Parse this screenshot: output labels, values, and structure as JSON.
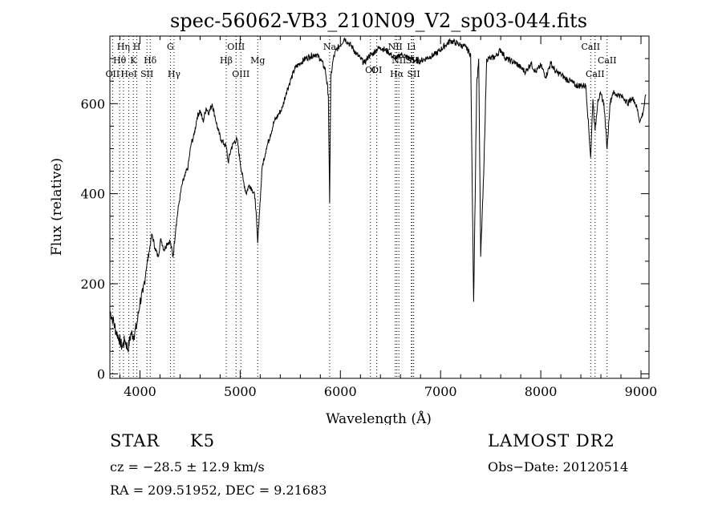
{
  "chart_data": {
    "type": "line",
    "title": "spec-56062-VB3_210N09_V2_sp03-044.fits",
    "xlabel": "Wavelength (Å)",
    "ylabel": "Flux (relative)",
    "xlim": [
      3700,
      9080
    ],
    "ylim": [
      -10,
      750
    ],
    "x_ticks": [
      4000,
      5000,
      6000,
      7000,
      8000,
      9000
    ],
    "y_ticks": [
      0,
      200,
      400,
      600
    ],
    "line_color": "#000000",
    "marker_color": "#000000",
    "series": [
      {
        "x": [
          3700,
          3730,
          3760,
          3790,
          3820,
          3850,
          3880,
          3910,
          3940,
          3970,
          4000,
          4030,
          4060,
          4090,
          4120,
          4150,
          4180,
          4210,
          4240,
          4270,
          4300,
          4330,
          4360,
          4390,
          4420,
          4450,
          4480,
          4510,
          4540,
          4570,
          4600,
          4630,
          4660,
          4690,
          4720,
          4750,
          4780,
          4810,
          4840,
          4861,
          4880,
          4910,
          4940,
          4970,
          5000,
          5030,
          5060,
          5090,
          5120,
          5150,
          5175,
          5190,
          5220,
          5260,
          5300,
          5340,
          5380,
          5420,
          5460,
          5500,
          5550,
          5600,
          5650,
          5700,
          5750,
          5800,
          5850,
          5880,
          5893,
          5905,
          5930,
          5960,
          6000,
          6040,
          6080,
          6120,
          6160,
          6200,
          6240,
          6280,
          6320,
          6360,
          6400,
          6440,
          6480,
          6520,
          6563,
          6600,
          6650,
          6700,
          6750,
          6800,
          6850,
          6900,
          6950,
          7000,
          7050,
          7100,
          7150,
          7200,
          7250,
          7300,
          7330,
          7360,
          7380,
          7400,
          7430,
          7460,
          7500,
          7550,
          7600,
          7650,
          7700,
          7750,
          7800,
          7850,
          7900,
          7950,
          8000,
          8050,
          8100,
          8150,
          8200,
          8250,
          8300,
          8350,
          8400,
          8450,
          8498,
          8520,
          8542,
          8570,
          8600,
          8630,
          8662,
          8690,
          8720,
          8750,
          8780,
          8810,
          8840,
          8870,
          8900,
          8930,
          8960,
          8990,
          9020,
          9050
        ],
        "y": [
          140,
          120,
          95,
          80,
          60,
          75,
          55,
          90,
          85,
          110,
          160,
          180,
          230,
          270,
          310,
          280,
          260,
          300,
          275,
          290,
          295,
          260,
          330,
          380,
          420,
          440,
          460,
          510,
          530,
          570,
          585,
          560,
          590,
          580,
          600,
          570,
          540,
          520,
          510,
          505,
          470,
          500,
          515,
          520,
          470,
          430,
          400,
          420,
          410,
          390,
          290,
          350,
          460,
          500,
          530,
          560,
          575,
          590,
          625,
          650,
          680,
          690,
          700,
          705,
          710,
          700,
          675,
          620,
          380,
          660,
          700,
          720,
          730,
          745,
          735,
          725,
          710,
          700,
          690,
          705,
          710,
          720,
          725,
          720,
          715,
          705,
          700,
          710,
          705,
          700,
          695,
          695,
          700,
          705,
          710,
          720,
          730,
          740,
          735,
          730,
          725,
          710,
          160,
          640,
          700,
          260,
          440,
          700,
          700,
          705,
          720,
          700,
          695,
          690,
          680,
          670,
          690,
          670,
          685,
          660,
          690,
          670,
          665,
          655,
          650,
          640,
          640,
          640,
          480,
          610,
          540,
          610,
          620,
          600,
          500,
          600,
          625,
          620,
          620,
          615,
          610,
          600,
          610,
          610,
          590,
          560,
          580,
          620
        ]
      }
    ],
    "line_markers": [
      {
        "label": "OII",
        "x": 3727,
        "row": 3
      },
      {
        "label": "Hη",
        "x": 3835,
        "row": 1
      },
      {
        "label": "Hθ",
        "x": 3797,
        "row": 2
      },
      {
        "label": "K",
        "x": 3934,
        "row": 2
      },
      {
        "label": "H",
        "x": 3969,
        "row": 1
      },
      {
        "label": "HeI",
        "x": 3889,
        "row": 3
      },
      {
        "label": "SII",
        "x": 4070,
        "row": 3
      },
      {
        "label": "Hδ",
        "x": 4102,
        "row": 2
      },
      {
        "label": "G",
        "x": 4304,
        "row": 1
      },
      {
        "label": "Hγ",
        "x": 4340,
        "row": 3
      },
      {
        "label": "OIII",
        "x": 4959,
        "row": 1
      },
      {
        "label": "Hβ",
        "x": 4861,
        "row": 2
      },
      {
        "label": "OIII",
        "x": 5007,
        "row": 3
      },
      {
        "label": "Mg",
        "x": 5175,
        "row": 2
      },
      {
        "label": "Na",
        "x": 5893,
        "row": 1
      },
      {
        "label": "OI",
        "x": 6300,
        "row": 4
      },
      {
        "label": "OI",
        "x": 6363,
        "row": 4
      },
      {
        "label": "NII",
        "x": 6548,
        "row": 1
      },
      {
        "label": "Li",
        "x": 6708,
        "row": 1
      },
      {
        "label": "NII",
        "x": 6584,
        "row": 2
      },
      {
        "label": "SII",
        "x": 6716,
        "row": 2
      },
      {
        "label": "Hα",
        "x": 6563,
        "row": 3
      },
      {
        "label": "SII",
        "x": 6731,
        "row": 3
      },
      {
        "label": "CaII",
        "x": 8498,
        "row": 1
      },
      {
        "label": "CaII",
        "x": 8542,
        "row": 3
      },
      {
        "label": "CaII",
        "x": 8662,
        "row": 2
      }
    ]
  },
  "footer": {
    "obj_type": "STAR",
    "obj_subclass": "K5",
    "survey": "LAMOST DR2",
    "redshift": "cz = −28.5 ± 12.9 km/s",
    "obs_date": "Obs−Date: 20120514",
    "coords": "RA = 209.51952, DEC =   9.21683"
  }
}
